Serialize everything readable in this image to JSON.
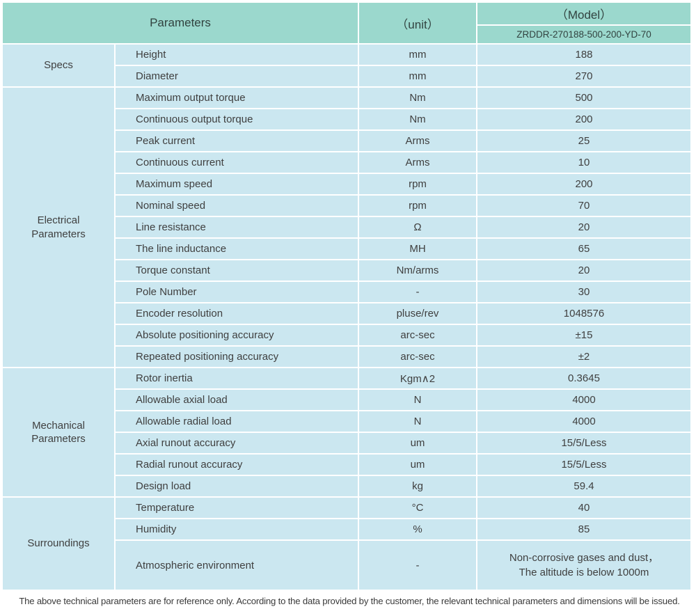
{
  "colors": {
    "header_bg": "#9bd8cd",
    "cell_bg": "#cbe7f0",
    "text": "#3f3f3f"
  },
  "table": {
    "header": {
      "parameters_label": "Parameters",
      "unit_label": "（unit）",
      "model_label": "（Model）",
      "model_value": "ZRDDR-270188-500-200-YD-70"
    },
    "sections": [
      {
        "category": "Specs",
        "rows": [
          {
            "name": "Height",
            "unit": "mm",
            "value": "188"
          },
          {
            "name": "Diameter",
            "unit": "mm",
            "value": "270"
          }
        ]
      },
      {
        "category": "Electrical\nParameters",
        "rows": [
          {
            "name": "Maximum output torque",
            "unit": "Nm",
            "value": "500"
          },
          {
            "name": "Continuous output torque",
            "unit": "Nm",
            "value": "200"
          },
          {
            "name": "Peak current",
            "unit": "Arms",
            "value": "25"
          },
          {
            "name": "Continuous current",
            "unit": "Arms",
            "value": "10"
          },
          {
            "name": "Maximum speed",
            "unit": "rpm",
            "value": "200"
          },
          {
            "name": "Nominal speed",
            "unit": "rpm",
            "value": "70"
          },
          {
            "name": "Line resistance",
            "unit": "Ω",
            "value": "20"
          },
          {
            "name": "The line inductance",
            "unit": "MH",
            "value": "65"
          },
          {
            "name": "Torque constant",
            "unit": "Nm/arms",
            "value": "20"
          },
          {
            "name": "Pole Number",
            "unit": "-",
            "value": "30"
          },
          {
            "name": "Encoder resolution",
            "unit": "pluse/rev",
            "value": "1048576"
          },
          {
            "name": "Absolute positioning accuracy",
            "unit": "arc-sec",
            "value": "±15"
          },
          {
            "name": "Repeated positioning accuracy",
            "unit": "arc-sec",
            "value": "±2"
          }
        ]
      },
      {
        "category": "Mechanical\nParameters",
        "rows": [
          {
            "name": "Rotor inertia",
            "unit": "Kgm∧2",
            "value": "0.3645"
          },
          {
            "name": "Allowable axial load",
            "unit": "N",
            "value": "4000"
          },
          {
            "name": "Allowable radial load",
            "unit": "N",
            "value": "4000"
          },
          {
            "name": "Axial runout accuracy",
            "unit": "um",
            "value": "15/5/Less"
          },
          {
            "name": "Radial runout accuracy",
            "unit": "um",
            "value": "15/5/Less"
          },
          {
            "name": "Design load",
            "unit": "kg",
            "value": "59.4"
          }
        ]
      },
      {
        "category": "Surroundings",
        "rows": [
          {
            "name": "Temperature",
            "unit": "°C",
            "value": "40"
          },
          {
            "name": "Humidity",
            "unit": "%",
            "value": "85"
          },
          {
            "name": "Atmospheric environment",
            "unit": "-",
            "value": "Non-corrosive gases and dust，\nThe altitude is below 1000m",
            "tall": true
          }
        ]
      }
    ],
    "footnote": "The above technical parameters are for reference only. According to the data provided by the customer, the relevant technical parameters and dimensions will be issued."
  }
}
